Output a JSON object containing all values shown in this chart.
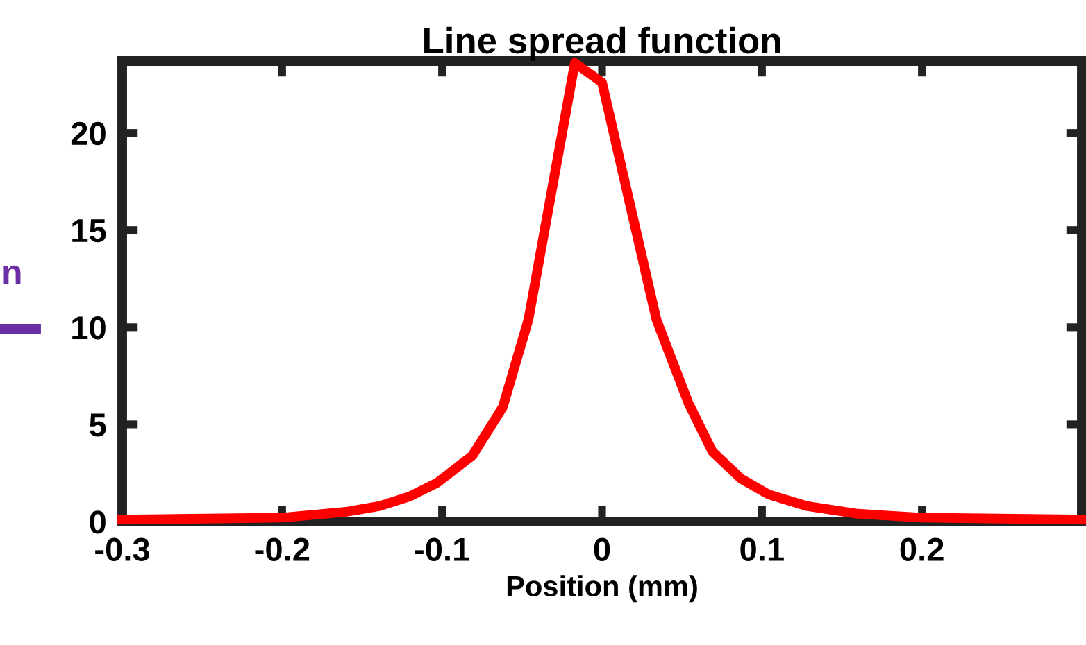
{
  "chart_data": {
    "type": "line",
    "title": "Line spread function",
    "xlabel": "Position (mm)",
    "x": [
      -0.3,
      -0.2,
      -0.16,
      -0.139,
      -0.12,
      -0.103,
      -0.081,
      -0.062,
      -0.046,
      -0.017,
      0,
      0.034,
      0.054,
      0.069,
      0.087,
      0.104,
      0.128,
      0.16,
      0.2,
      0.3
    ],
    "series": [
      {
        "color": "#ff0000",
        "values": [
          0.1,
          0.2,
          0.5,
          0.8,
          1.3,
          2.0,
          3.4,
          5.9,
          10.4,
          23.6,
          22.6,
          10.4,
          6.1,
          3.6,
          2.2,
          1.4,
          0.8,
          0.4,
          0.2,
          0.1
        ]
      }
    ],
    "xlim": [
      -0.3,
      0.3
    ],
    "xticks": [
      -0.3,
      -0.2,
      -0.1,
      0,
      0.1,
      0.2
    ],
    "ylim": [
      0,
      23.7
    ],
    "yticks": [
      0,
      5,
      10,
      15,
      20
    ],
    "annotations": [
      "n"
    ],
    "grid": false,
    "marker": "none",
    "line_style": "solid"
  }
}
